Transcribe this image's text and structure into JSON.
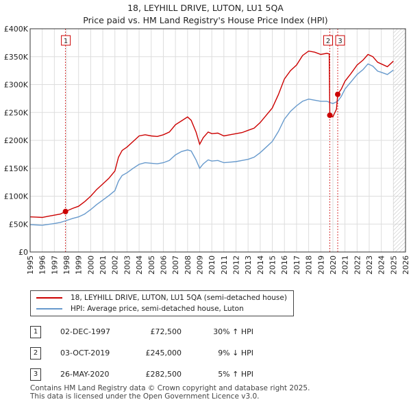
{
  "title_line1": "18, LEYHILL DRIVE, LUTON, LU1 5QA",
  "title_line2": "Price paid vs. HM Land Registry's House Price Index (HPI)",
  "legend": {
    "property": "18, LEYHILL DRIVE, LUTON, LU1 5QA (semi-detached house)",
    "hpi": "HPI: Average price, semi-detached house, Luton"
  },
  "colors": {
    "property": "#cc0000",
    "hpi": "#6699cc",
    "grid": "#dddddd",
    "hatch": "#cccccc"
  },
  "transactions": [
    {
      "num": "1",
      "date": "02-DEC-1997",
      "price": "£72,500",
      "hpi": "30% ↑ HPI"
    },
    {
      "num": "2",
      "date": "03-OCT-2019",
      "price": "£245,000",
      "hpi": "9% ↓ HPI"
    },
    {
      "num": "3",
      "date": "26-MAY-2020",
      "price": "£282,500",
      "hpi": "5% ↑ HPI"
    }
  ],
  "footer_line1": "Contains HM Land Registry data © Crown copyright and database right 2025.",
  "footer_line2": "This data is licensed under the Open Government Licence v3.0.",
  "chart_data": {
    "type": "line",
    "x_range": [
      1995,
      2026
    ],
    "ylim": [
      0,
      400000
    ],
    "y_ticks": [
      {
        "value": 0,
        "label": "£0"
      },
      {
        "value": 50000,
        "label": "£50K"
      },
      {
        "value": 100000,
        "label": "£100K"
      },
      {
        "value": 150000,
        "label": "£150K"
      },
      {
        "value": 200000,
        "label": "£200K"
      },
      {
        "value": 250000,
        "label": "£250K"
      },
      {
        "value": 300000,
        "label": "£300K"
      },
      {
        "value": 350000,
        "label": "£350K"
      },
      {
        "value": 400000,
        "label": "£400K"
      }
    ],
    "x_ticks": [
      "1995",
      "1996",
      "1997",
      "1998",
      "1999",
      "2000",
      "2001",
      "2002",
      "2003",
      "2004",
      "2005",
      "2006",
      "2007",
      "2008",
      "2009",
      "2010",
      "2011",
      "2012",
      "2013",
      "2014",
      "2015",
      "2016",
      "2017",
      "2018",
      "2019",
      "2020",
      "2021",
      "2022",
      "2023",
      "2024",
      "2025",
      "2026"
    ],
    "grid": true,
    "hatched_future_from": 2025.0,
    "sale_markers": [
      {
        "label": "1",
        "x": 1997.92,
        "y": 72500
      },
      {
        "label": "2",
        "x": 2019.75,
        "y": 245000
      },
      {
        "label": "3",
        "x": 2020.4,
        "y": 282500
      }
    ],
    "series": [
      {
        "name": "18, LEYHILL DRIVE, LUTON, LU1 5QA (semi-detached house)",
        "x": [
          1995,
          1995.5,
          1996,
          1996.5,
          1997,
          1997.5,
          1997.92,
          1998.5,
          1999,
          1999.5,
          2000,
          2000.5,
          2001,
          2001.5,
          2002,
          2002.3,
          2002.6,
          2003,
          2003.5,
          2004,
          2004.5,
          2005,
          2005.5,
          2006,
          2006.5,
          2007,
          2007.5,
          2008,
          2008.3,
          2008.7,
          2009,
          2009.3,
          2009.7,
          2010,
          2010.5,
          2011,
          2011.5,
          2012,
          2012.5,
          2013,
          2013.5,
          2014,
          2014.5,
          2015,
          2015.5,
          2016,
          2016.5,
          2017,
          2017.5,
          2018,
          2018.5,
          2019,
          2019.5,
          2019.7,
          2019.75,
          2020,
          2020.3,
          2020.4,
          2020.7,
          2021,
          2021.5,
          2022,
          2022.5,
          2022.9,
          2023.3,
          2023.7,
          2024,
          2024.5,
          2025
        ],
        "values": [
          63000,
          62500,
          62000,
          64000,
          66000,
          68000,
          72500,
          78000,
          82000,
          90000,
          100000,
          112000,
          122000,
          132000,
          145000,
          170000,
          182000,
          188000,
          198000,
          208000,
          210000,
          208000,
          207000,
          210000,
          215000,
          228000,
          235000,
          242000,
          236000,
          215000,
          193000,
          205000,
          215000,
          212000,
          213000,
          208000,
          210000,
          212000,
          214000,
          218000,
          222000,
          232000,
          245000,
          258000,
          282000,
          310000,
          325000,
          335000,
          352000,
          360000,
          358000,
          354000,
          356000,
          355000,
          245000,
          242000,
          256000,
          282500,
          292000,
          306000,
          320000,
          335000,
          344000,
          354000,
          350000,
          340000,
          337000,
          332000,
          342000
        ]
      },
      {
        "name": "HPI: Average price, semi-detached house, Luton",
        "x": [
          1995,
          1995.5,
          1996,
          1996.5,
          1997,
          1997.5,
          1997.92,
          1998.5,
          1999,
          1999.5,
          2000,
          2000.5,
          2001,
          2001.5,
          2002,
          2002.3,
          2002.6,
          2003,
          2003.5,
          2004,
          2004.5,
          2005,
          2005.5,
          2006,
          2006.5,
          2007,
          2007.5,
          2008,
          2008.3,
          2008.7,
          2009,
          2009.3,
          2009.7,
          2010,
          2010.5,
          2011,
          2011.5,
          2012,
          2012.5,
          2013,
          2013.5,
          2014,
          2014.5,
          2015,
          2015.5,
          2016,
          2016.5,
          2017,
          2017.5,
          2018,
          2018.5,
          2019,
          2019.5,
          2019.75,
          2020,
          2020.4,
          2020.7,
          2021,
          2021.5,
          2022,
          2022.5,
          2022.9,
          2023.3,
          2023.7,
          2024,
          2024.5,
          2025
        ],
        "values": [
          49000,
          48500,
          48000,
          49500,
          51000,
          53000,
          55800,
          60000,
          63000,
          68000,
          76000,
          85000,
          93000,
          101000,
          110000,
          127000,
          137000,
          142000,
          150000,
          157000,
          160000,
          159000,
          158000,
          160000,
          164000,
          174000,
          180000,
          183000,
          181000,
          165000,
          150000,
          158000,
          165000,
          163000,
          164000,
          160000,
          161000,
          162000,
          164000,
          166000,
          170000,
          178000,
          188000,
          198000,
          216000,
          238000,
          252000,
          262000,
          270000,
          274000,
          272000,
          270000,
          270000,
          268000,
          266000,
          270000,
          279000,
          292000,
          305000,
          318000,
          327000,
          337000,
          333000,
          324000,
          322000,
          318000,
          326000
        ]
      }
    ]
  }
}
